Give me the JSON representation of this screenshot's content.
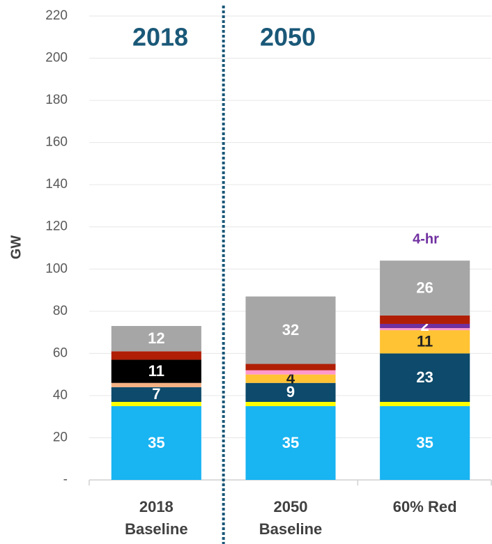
{
  "chart_data": {
    "type": "stacked_bar",
    "ylabel": "GW",
    "categories": [
      "2018\nBaseline",
      "2050\nBaseline",
      "60% Red"
    ],
    "ylim": [
      0,
      220
    ],
    "yticks": [
      {
        "value": 0,
        "label": "-"
      },
      20,
      40,
      60,
      80,
      100,
      120,
      140,
      160,
      180,
      200,
      220
    ],
    "grid": true,
    "annotations": [
      "2018",
      "2050",
      "4-hr"
    ],
    "series": [
      {
        "color": "#19b4f2",
        "label_color": "#ffffff",
        "values": [
          35,
          35,
          35
        ],
        "value_labels": [
          "35",
          "35",
          "35"
        ]
      },
      {
        "color": "#ffff00",
        "values": [
          2,
          2,
          2
        ]
      },
      {
        "color": "#0d4a6b",
        "label_color": "#ffffff",
        "values": [
          7,
          9,
          23
        ],
        "value_labels": [
          "7",
          "9",
          "23"
        ]
      },
      {
        "color": "#f4b183",
        "values": [
          2,
          null,
          null
        ]
      },
      {
        "color": "#000000",
        "label_color": "#ffffff",
        "values": [
          11,
          null,
          null
        ],
        "value_labels": [
          "11",
          null,
          null
        ]
      },
      {
        "color": "#ffc333",
        "label_color": "#222222",
        "values": [
          null,
          4,
          11
        ],
        "value_labels": [
          null,
          "4",
          "11"
        ]
      },
      {
        "color": "#ff99cc",
        "values": [
          null,
          2,
          1
        ]
      },
      {
        "color": "#7030a0",
        "label_color": "#ffffff",
        "values": [
          null,
          null,
          2
        ],
        "value_labels": [
          null,
          null,
          "2"
        ]
      },
      {
        "color": "#b01e06",
        "values": [
          4,
          3,
          4
        ]
      },
      {
        "color": "#a6a6a6",
        "label_color": "#ffffff",
        "values": [
          12,
          32,
          26
        ],
        "value_labels": [
          "12",
          "32",
          "26"
        ]
      }
    ]
  }
}
